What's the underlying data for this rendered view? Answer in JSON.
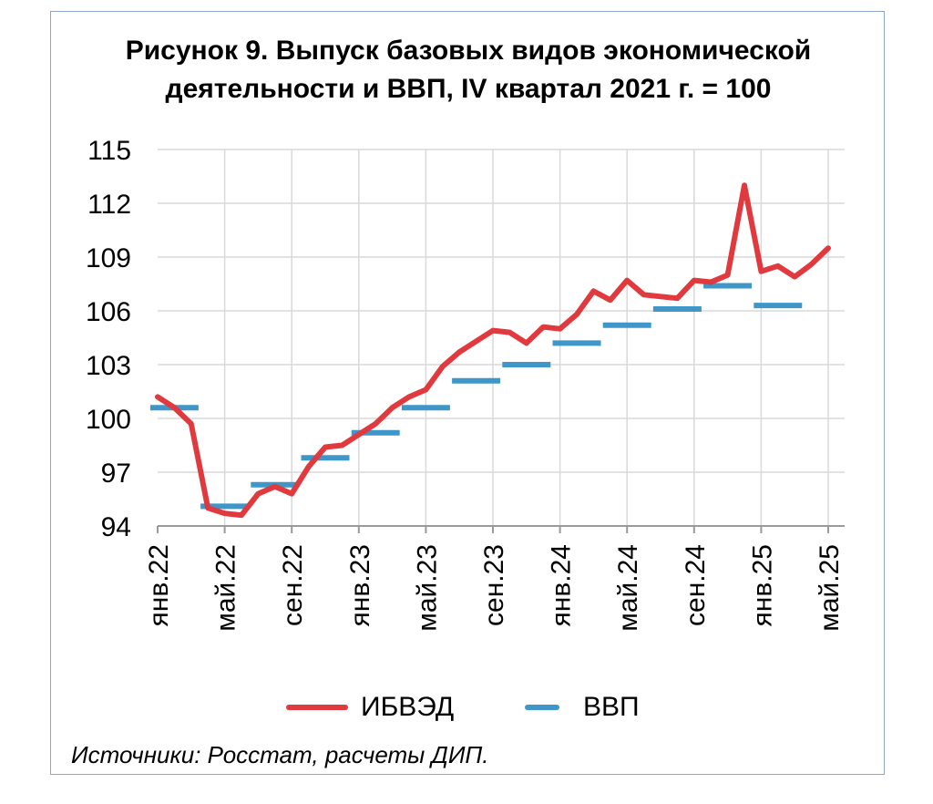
{
  "title_line1": "Рисунок 9. Выпуск базовых видов экономической",
  "title_line2": "деятельности и ВВП, IV квартал 2021 г. = 100",
  "source": "Источники: Росстат, расчеты ДИП.",
  "legend": {
    "ibved": "ИБВЭД",
    "gdp": "ВВП"
  },
  "colors": {
    "ibved": "#e03a3e",
    "gdp": "#3f96c8",
    "grid": "#d9d9d9",
    "axis": "#9a9a9a"
  },
  "chart_data": {
    "type": "line",
    "title": "Рисунок 9. Выпуск базовых видов экономической деятельности и ВВП, IV квартал 2021 г. = 100",
    "xlabel": "",
    "ylabel": "",
    "ylim": [
      94,
      115
    ],
    "yticks": [
      94,
      97,
      100,
      103,
      106,
      109,
      112,
      115
    ],
    "xtick_labels": [
      "янв.22",
      "май.22",
      "сен.22",
      "янв.23",
      "май.23",
      "сен.23",
      "янв.24",
      "май.24",
      "сен.24",
      "янв.25",
      "май.25"
    ],
    "xtick_month_index": [
      0,
      4,
      8,
      12,
      16,
      20,
      24,
      28,
      32,
      36,
      40
    ],
    "grid": true,
    "legend_position": "bottom",
    "series": [
      {
        "name": "ИБВЭД",
        "style": "line",
        "x": [
          "янв.22",
          "фев.22",
          "мар.22",
          "апр.22",
          "май.22",
          "июн.22",
          "июл.22",
          "авг.22",
          "сен.22",
          "окт.22",
          "ноя.22",
          "дек.22",
          "янв.23",
          "фев.23",
          "мар.23",
          "апр.23",
          "май.23",
          "июн.23",
          "июл.23",
          "авг.23",
          "сен.23",
          "окт.23",
          "ноя.23",
          "дек.23",
          "янв.24",
          "фев.24",
          "мар.24",
          "апр.24",
          "май.24",
          "июн.24",
          "июл.24",
          "авг.24",
          "сен.24",
          "окт.24",
          "ноя.24",
          "дек.24",
          "янв.25",
          "фев.25",
          "мар.25",
          "апр.25",
          "май.25"
        ],
        "values": [
          101.2,
          100.6,
          99.7,
          95.0,
          94.7,
          94.6,
          95.8,
          96.2,
          95.8,
          97.3,
          98.4,
          98.5,
          99.1,
          99.7,
          100.6,
          101.2,
          101.6,
          102.9,
          103.7,
          104.3,
          104.9,
          104.8,
          104.2,
          105.1,
          105.0,
          105.8,
          107.1,
          106.6,
          107.7,
          106.9,
          106.8,
          106.7,
          107.7,
          107.6,
          108.0,
          113.0,
          108.2,
          108.5,
          107.9,
          108.6,
          109.5
        ]
      },
      {
        "name": "ВВП",
        "style": "quarterly-steps",
        "x": [
          "I кв.22",
          "II кв.22",
          "III кв.22",
          "IV кв.22",
          "I кв.23",
          "II кв.23",
          "III кв.23",
          "IV кв.23",
          "I кв.24",
          "II кв.24",
          "III кв.24",
          "IV кв.24",
          "I кв.25"
        ],
        "values": [
          100.6,
          95.1,
          96.3,
          97.8,
          99.2,
          100.6,
          102.1,
          103.0,
          104.2,
          105.2,
          106.1,
          107.4,
          106.3
        ]
      }
    ]
  }
}
